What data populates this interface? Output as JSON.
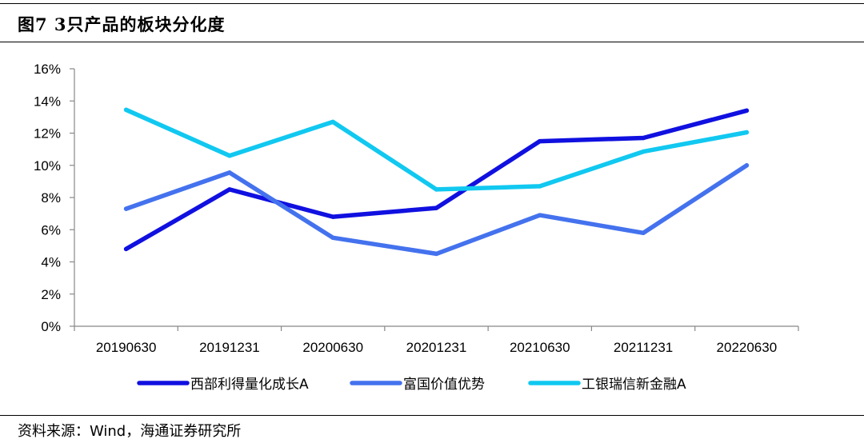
{
  "figure": {
    "title": "图7   3只产品的板块分化度",
    "source": "资料来源：Wind，海通证券研究所"
  },
  "chart_data": {
    "type": "line",
    "title": "",
    "xlabel": "",
    "ylabel": "",
    "categories": [
      "20190630",
      "20191231",
      "20200630",
      "20201231",
      "20210630",
      "20211231",
      "20220630"
    ],
    "ylim": [
      0,
      16
    ],
    "yticks": [
      "0%",
      "2%",
      "4%",
      "6%",
      "8%",
      "10%",
      "12%",
      "14%",
      "16%"
    ],
    "grid": false,
    "legend_position": "bottom",
    "series": [
      {
        "name": "西部利得量化成长A",
        "color": "#1010e0",
        "values": [
          4.8,
          8.5,
          6.8,
          7.35,
          11.5,
          11.7,
          13.4
        ]
      },
      {
        "name": "富国价值优势",
        "color": "#4472ee",
        "values": [
          7.3,
          9.55,
          5.5,
          4.5,
          6.9,
          5.8,
          10.0
        ]
      },
      {
        "name": "工银瑞信新金融A",
        "color": "#11c8f0",
        "values": [
          13.45,
          10.6,
          12.7,
          8.5,
          8.7,
          10.85,
          12.05
        ]
      }
    ]
  }
}
